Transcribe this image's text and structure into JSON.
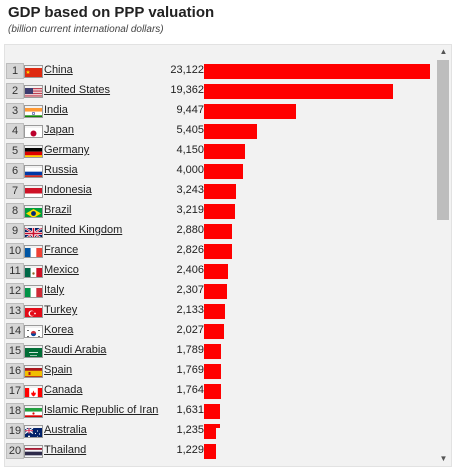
{
  "header": {
    "title": "GDP based on PPP valuation",
    "subtitle": "(billion current international dollars)"
  },
  "colors": {
    "bar": "#ff0000",
    "rank_bg": "#d6d6d6",
    "panel_bg": "#f2f2f2"
  },
  "chart_data": {
    "type": "bar",
    "orientation": "horizontal",
    "title": "GDP based on PPP valuation",
    "subtitle": "(billion current international dollars)",
    "xlim": [
      0,
      23122
    ],
    "grid": false,
    "rows": [
      {
        "rank": "1",
        "country": "China",
        "label": "23,122",
        "value": 23122,
        "flag": "cn"
      },
      {
        "rank": "2",
        "country": "United States",
        "label": "19,362",
        "value": 19362,
        "flag": "us"
      },
      {
        "rank": "3",
        "country": "India",
        "label": "9,447",
        "value": 9447,
        "flag": "in"
      },
      {
        "rank": "4",
        "country": "Japan",
        "label": "5,405",
        "value": 5405,
        "flag": "jp"
      },
      {
        "rank": "5",
        "country": "Germany",
        "label": "4,150",
        "value": 4150,
        "flag": "de"
      },
      {
        "rank": "6",
        "country": "Russia",
        "label": "4,000",
        "value": 4000,
        "flag": "ru"
      },
      {
        "rank": "7",
        "country": "Indonesia",
        "label": "3,243",
        "value": 3243,
        "flag": "id"
      },
      {
        "rank": "8",
        "country": "Brazil",
        "label": "3,219",
        "value": 3219,
        "flag": "br"
      },
      {
        "rank": "9",
        "country": "United Kingdom",
        "label": "2,880",
        "value": 2880,
        "flag": "gb"
      },
      {
        "rank": "10",
        "country": "France",
        "label": "2,826",
        "value": 2826,
        "flag": "fr"
      },
      {
        "rank": "11",
        "country": "Mexico",
        "label": "2,406",
        "value": 2406,
        "flag": "mx"
      },
      {
        "rank": "12",
        "country": "Italy",
        "label": "2,307",
        "value": 2307,
        "flag": "it"
      },
      {
        "rank": "13",
        "country": "Turkey",
        "label": "2,133",
        "value": 2133,
        "flag": "tr"
      },
      {
        "rank": "14",
        "country": "Korea",
        "label": "2,027",
        "value": 2027,
        "flag": "kr"
      },
      {
        "rank": "15",
        "country": "Saudi Arabia",
        "label": "1,789",
        "value": 1789,
        "flag": "sa"
      },
      {
        "rank": "16",
        "country": "Spain",
        "label": "1,769",
        "value": 1769,
        "flag": "es"
      },
      {
        "rank": "17",
        "country": "Canada",
        "label": "1,764",
        "value": 1764,
        "flag": "ca"
      },
      {
        "rank": "18",
        "country": "Islamic Republic of Iran",
        "label": "1,631",
        "value": 1631,
        "flag": "ir"
      },
      {
        "rank": "19",
        "country": "Australia",
        "label": "1,235",
        "value": 1235,
        "flag": "au"
      },
      {
        "rank": "20",
        "country": "Thailand",
        "label": "1,229",
        "value": 1229,
        "flag": "th"
      }
    ]
  }
}
